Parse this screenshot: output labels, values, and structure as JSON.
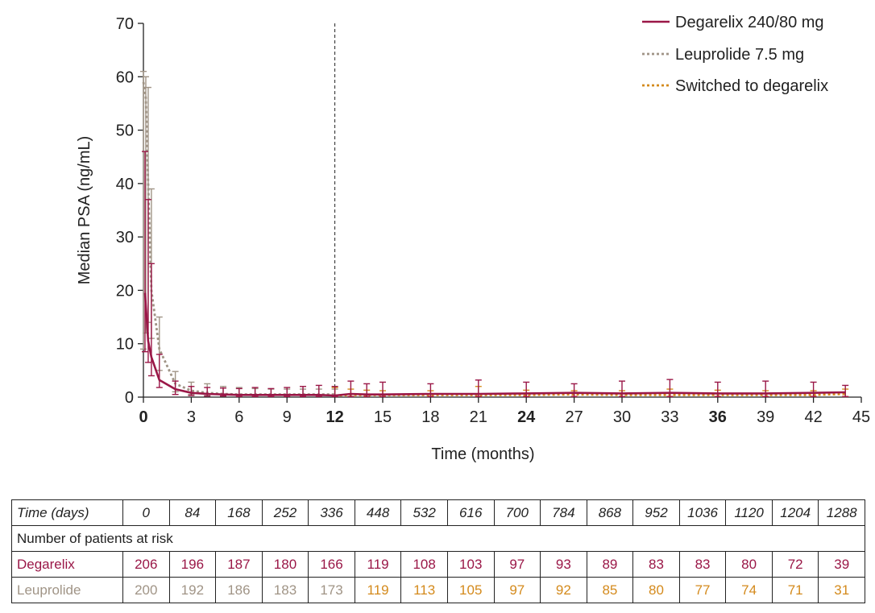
{
  "chart_data": {
    "type": "line",
    "xlabel": "Time (months)",
    "ylabel": "Median PSA (ng/mL)",
    "xlim": [
      0,
      45
    ],
    "ylim": [
      0,
      70
    ],
    "xticks": [
      0,
      3,
      6,
      9,
      12,
      15,
      18,
      21,
      24,
      27,
      30,
      33,
      36,
      39,
      42,
      45
    ],
    "xticks_bold": [
      0,
      12,
      24,
      36
    ],
    "yticks": [
      0,
      10,
      20,
      30,
      40,
      50,
      60,
      70
    ],
    "reference_line_x": 12,
    "legend_position": "top-right",
    "grid": false,
    "series": [
      {
        "name": "Degarelix 240/80 mg",
        "color": "#9a1747",
        "style": "solid",
        "points": [
          {
            "x": 0.1,
            "y": 19.5,
            "lo": 8.5,
            "hi": 46
          },
          {
            "x": 0.3,
            "y": 10.5,
            "lo": 6.5,
            "hi": 37
          },
          {
            "x": 0.5,
            "y": 7.5,
            "lo": 4,
            "hi": 25
          },
          {
            "x": 1,
            "y": 3.2,
            "lo": 1.8,
            "hi": 8
          },
          {
            "x": 2,
            "y": 1.5,
            "lo": 0.5,
            "hi": 3
          },
          {
            "x": 3,
            "y": 0.8,
            "lo": 0.3,
            "hi": 2
          },
          {
            "x": 4,
            "y": 0.6,
            "lo": 0.2,
            "hi": 1.8
          },
          {
            "x": 5,
            "y": 0.5,
            "lo": 0.2,
            "hi": 1.7
          },
          {
            "x": 6,
            "y": 0.4,
            "lo": 0.1,
            "hi": 1.6
          },
          {
            "x": 7,
            "y": 0.4,
            "lo": 0.1,
            "hi": 1.8
          },
          {
            "x": 8,
            "y": 0.4,
            "lo": 0.1,
            "hi": 1.6
          },
          {
            "x": 9,
            "y": 0.4,
            "lo": 0.1,
            "hi": 1.8
          },
          {
            "x": 10,
            "y": 0.4,
            "lo": 0.1,
            "hi": 2
          },
          {
            "x": 11,
            "y": 0.4,
            "lo": 0.1,
            "hi": 2.2
          },
          {
            "x": 12,
            "y": 0.3,
            "lo": 0.1,
            "hi": 2
          },
          {
            "x": 13,
            "y": 0.6,
            "lo": 0.1,
            "hi": 3
          },
          {
            "x": 14,
            "y": 0.5,
            "lo": 0.1,
            "hi": 2.5
          },
          {
            "x": 15,
            "y": 0.5,
            "lo": 0.1,
            "hi": 2.8
          },
          {
            "x": 18,
            "y": 0.6,
            "lo": 0.1,
            "hi": 2.5
          },
          {
            "x": 21,
            "y": 0.6,
            "lo": 0.1,
            "hi": 3.2
          },
          {
            "x": 24,
            "y": 0.7,
            "lo": 0.1,
            "hi": 2.8
          },
          {
            "x": 27,
            "y": 0.8,
            "lo": 0.1,
            "hi": 2.5
          },
          {
            "x": 30,
            "y": 0.7,
            "lo": 0.1,
            "hi": 3
          },
          {
            "x": 33,
            "y": 0.8,
            "lo": 0.1,
            "hi": 3.3
          },
          {
            "x": 36,
            "y": 0.7,
            "lo": 0.1,
            "hi": 2.8
          },
          {
            "x": 39,
            "y": 0.7,
            "lo": 0.1,
            "hi": 3
          },
          {
            "x": 42,
            "y": 0.8,
            "lo": 0.1,
            "hi": 2.8
          },
          {
            "x": 44,
            "y": 0.9,
            "lo": 0.1,
            "hi": 2.2
          }
        ]
      },
      {
        "name": "Leuprolide 7.5 mg",
        "color": "#a09486",
        "style": "dotted",
        "points": [
          {
            "x": 0,
            "y": 59,
            "lo": 9,
            "hi": 61
          },
          {
            "x": 0.15,
            "y": 56,
            "lo": 12,
            "hi": 60
          },
          {
            "x": 0.3,
            "y": 40,
            "lo": 14,
            "hi": 58
          },
          {
            "x": 0.5,
            "y": 20,
            "lo": 11,
            "hi": 39
          },
          {
            "x": 1,
            "y": 9,
            "lo": 5,
            "hi": 15
          },
          {
            "x": 2,
            "y": 2.5,
            "lo": 1,
            "hi": 4.8
          },
          {
            "x": 3,
            "y": 1.2,
            "lo": 0.5,
            "hi": 2.8
          },
          {
            "x": 4,
            "y": 0.8,
            "lo": 0.3,
            "hi": 2.5
          },
          {
            "x": 5,
            "y": 0.6,
            "lo": 0.2,
            "hi": 2
          },
          {
            "x": 6,
            "y": 0.5,
            "lo": 0.2,
            "hi": 1.8
          },
          {
            "x": 7,
            "y": 0.5,
            "lo": 0.2,
            "hi": 1.6
          },
          {
            "x": 8,
            "y": 0.5,
            "lo": 0.2,
            "hi": 1.5
          },
          {
            "x": 9,
            "y": 0.5,
            "lo": 0.2,
            "hi": 1.5
          },
          {
            "x": 10,
            "y": 0.5,
            "lo": 0.2,
            "hi": 1.5
          },
          {
            "x": 11,
            "y": 0.5,
            "lo": 0.2,
            "hi": 1.5
          },
          {
            "x": 12,
            "y": 0.5,
            "lo": 0.2,
            "hi": 1.5
          }
        ]
      },
      {
        "name": "Switched to degarelix",
        "color": "#d48a1c",
        "style": "dotted",
        "points": [
          {
            "x": 12,
            "y": 0.3,
            "lo": 0.1,
            "hi": 1.8
          },
          {
            "x": 13,
            "y": 0.4,
            "lo": 0.1,
            "hi": 1.5
          },
          {
            "x": 14,
            "y": 0.4,
            "lo": 0.1,
            "hi": 1.3
          },
          {
            "x": 15,
            "y": 0.4,
            "lo": 0.1,
            "hi": 1.2
          },
          {
            "x": 18,
            "y": 0.4,
            "lo": 0.1,
            "hi": 1.2
          },
          {
            "x": 21,
            "y": 0.4,
            "lo": 0.1,
            "hi": 2
          },
          {
            "x": 24,
            "y": 0.4,
            "lo": 0.1,
            "hi": 1.3
          },
          {
            "x": 27,
            "y": 0.5,
            "lo": 0.1,
            "hi": 1.2
          },
          {
            "x": 30,
            "y": 0.4,
            "lo": 0.1,
            "hi": 1.2
          },
          {
            "x": 33,
            "y": 0.4,
            "lo": 0.1,
            "hi": 1.5
          },
          {
            "x": 36,
            "y": 0.4,
            "lo": 0.1,
            "hi": 1.3
          },
          {
            "x": 39,
            "y": 0.4,
            "lo": 0.1,
            "hi": 1.2
          },
          {
            "x": 42,
            "y": 0.4,
            "lo": 0.1,
            "hi": 1.2
          },
          {
            "x": 44,
            "y": 0.6,
            "lo": 0.1,
            "hi": 1.5
          }
        ]
      }
    ]
  },
  "risk_table": {
    "header_label": "Time (days)",
    "days": [
      "0",
      "84",
      "168",
      "252",
      "336",
      "448",
      "532",
      "616",
      "700",
      "784",
      "868",
      "952",
      "1036",
      "1120",
      "1204",
      "1288"
    ],
    "subheader": "Number of patients at risk",
    "degarelix_label": "Degarelix",
    "degarelix": [
      "206",
      "196",
      "187",
      "180",
      "166",
      "119",
      "108",
      "103",
      "97",
      "93",
      "89",
      "83",
      "83",
      "80",
      "72",
      "39"
    ],
    "leuprolide_label": "Leuprolide",
    "leuprolide": [
      "200",
      "192",
      "186",
      "183",
      "173",
      "119",
      "113",
      "105",
      "97",
      "92",
      "85",
      "80",
      "77",
      "74",
      "71",
      "31"
    ],
    "leuprolide_switched_from_index": 5,
    "colors": {
      "degarelix": "#9a1747",
      "leuprolide": "#a09486",
      "switched": "#d48a1c"
    }
  }
}
